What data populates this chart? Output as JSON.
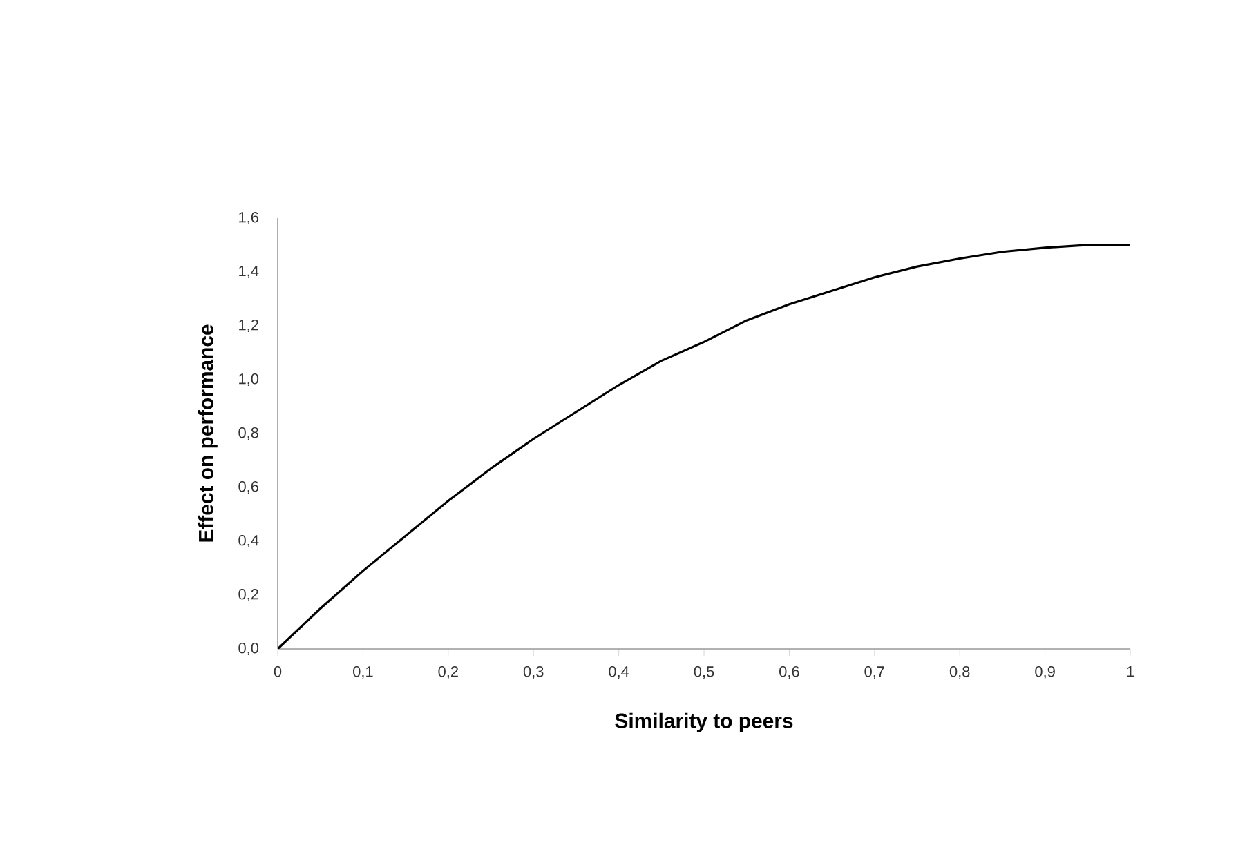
{
  "chart_data": {
    "type": "line",
    "xlabel": "Similarity to peers",
    "ylabel": "Effect on performance",
    "x": [
      0,
      0.05,
      0.1,
      0.15,
      0.2,
      0.25,
      0.3,
      0.35,
      0.4,
      0.45,
      0.5,
      0.55,
      0.6,
      0.65,
      0.7,
      0.75,
      0.8,
      0.85,
      0.9,
      0.95,
      1
    ],
    "series": [
      {
        "color": "#000000",
        "values": [
          0,
          0.15,
          0.29,
          0.42,
          0.55,
          0.67,
          0.78,
          0.88,
          0.98,
          1.07,
          1.14,
          1.22,
          1.28,
          1.33,
          1.38,
          1.42,
          1.45,
          1.475,
          1.49,
          1.5,
          1.5
        ]
      }
    ],
    "xlim": [
      0,
      1
    ],
    "xticks": [
      {
        "value": 0,
        "label": "0"
      },
      {
        "value": 0.1,
        "label": "0,1"
      },
      {
        "value": 0.2,
        "label": "0,2"
      },
      {
        "value": 0.3,
        "label": "0,3"
      },
      {
        "value": 0.4,
        "label": "0,4"
      },
      {
        "value": 0.5,
        "label": "0,5"
      },
      {
        "value": 0.6,
        "label": "0,6"
      },
      {
        "value": 0.7,
        "label": "0,7"
      },
      {
        "value": 0.8,
        "label": "0,8"
      },
      {
        "value": 0.9,
        "label": "0,9"
      },
      {
        "value": 1,
        "label": "1"
      }
    ],
    "ylim": [
      0,
      1.6
    ],
    "yticks": [
      {
        "value": 0,
        "label": "0,0"
      },
      {
        "value": 0.2,
        "label": "0,2"
      },
      {
        "value": 0.4,
        "label": "0,4"
      },
      {
        "value": 0.6,
        "label": "0,6"
      },
      {
        "value": 0.8,
        "label": "0,8"
      },
      {
        "value": 1.0,
        "label": "1,0"
      },
      {
        "value": 1.2,
        "label": "1,2"
      },
      {
        "value": 1.4,
        "label": "1,4"
      },
      {
        "value": 1.6,
        "label": "1,6"
      }
    ],
    "marker": "none",
    "line_style": "solid"
  }
}
